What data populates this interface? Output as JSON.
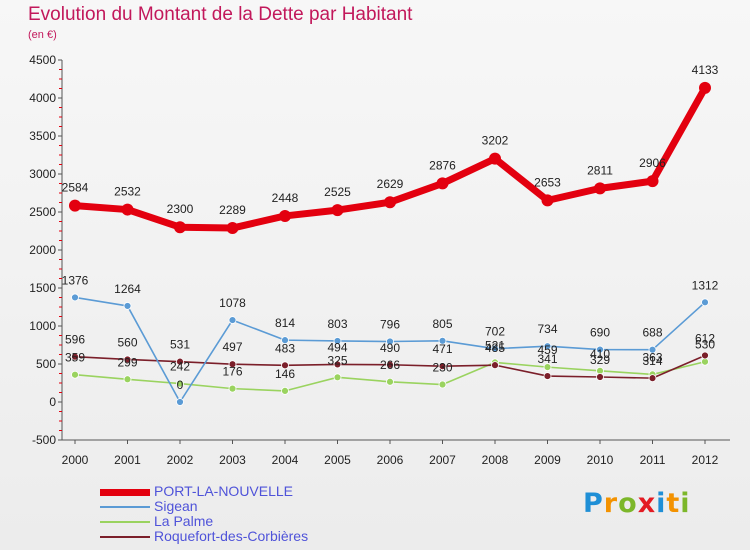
{
  "chart_data": {
    "type": "line",
    "title": "Evolution du Montant de la Dette par Habitant",
    "subtitle": "(en €)",
    "xlabel": "",
    "ylabel": "",
    "categories": [
      "2000",
      "2001",
      "2002",
      "2003",
      "2004",
      "2005",
      "2006",
      "2007",
      "2008",
      "2009",
      "2010",
      "2011",
      "2012"
    ],
    "ylim": [
      -500,
      4500
    ],
    "yticks": [
      -500,
      0,
      500,
      1000,
      1500,
      2000,
      2500,
      3000,
      3500,
      4000,
      4500
    ],
    "grid": false,
    "legend_position": "bottom-left",
    "series": [
      {
        "name": "PORT-LA-NOUVELLE",
        "color": "#e3000f",
        "values": [
          2584,
          2532,
          2300,
          2289,
          2448,
          2525,
          2629,
          2876,
          3202,
          2653,
          2811,
          2906,
          4133
        ]
      },
      {
        "name": "Sigean",
        "color": "#5b9bd5",
        "values": [
          1376,
          1264,
          0,
          1078,
          814,
          803,
          796,
          805,
          702,
          734,
          690,
          688,
          1312
        ]
      },
      {
        "name": "La Palme",
        "color": "#9ad35f",
        "values": [
          359,
          299,
          242,
          176,
          146,
          325,
          266,
          230,
          521,
          459,
          410,
          363,
          530
        ]
      },
      {
        "name": "Roquefort-des-Corbières",
        "color": "#7b1f2a",
        "values": [
          596,
          560,
          531,
          497,
          483,
          494,
          490,
          471,
          485,
          341,
          329,
          314,
          612
        ]
      }
    ]
  },
  "brand": {
    "letters": [
      {
        "ch": "P",
        "color": "#1f8fd6"
      },
      {
        "ch": "r",
        "color": "#f39200"
      },
      {
        "ch": "o",
        "color": "#7cb72a"
      },
      {
        "ch": "x",
        "color": "#e31b23"
      },
      {
        "ch": "i",
        "color": "#1f8fd6"
      },
      {
        "ch": "t",
        "color": "#f39200"
      },
      {
        "ch": "i",
        "color": "#7cb72a"
      }
    ]
  }
}
